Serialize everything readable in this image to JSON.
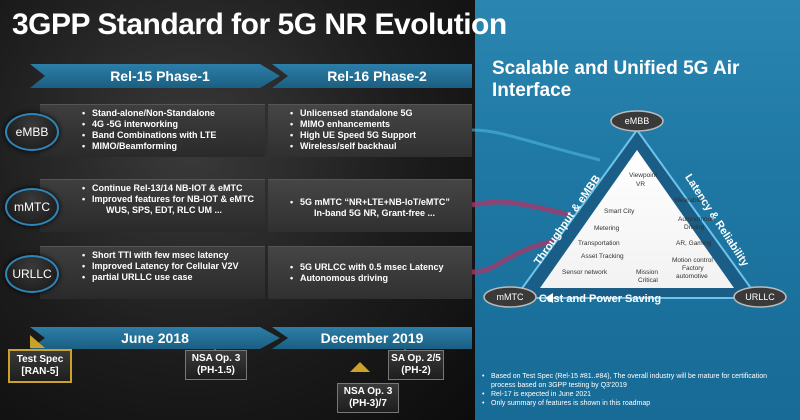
{
  "title": "3GPP Standard for 5G NR Evolution",
  "phases": {
    "rel15": "Rel-15 Phase-1",
    "rel16": "Rel-16 Phase-2"
  },
  "rows": [
    {
      "label": "eMBB",
      "rel15": [
        "Stand-alone/Non-Standalone",
        "4G -5G interworking",
        "Band Combinations with LTE",
        "MIMO/Beamforming"
      ],
      "rel16": [
        "Unlicensed standalone 5G",
        "MIMO enhancements",
        "High UE Speed 5G Support",
        "Wireless/self backhaul"
      ]
    },
    {
      "label": "mMTC",
      "rel15": [
        "Continue Rel-13/14 NB-IOT & eMTC",
        "Improved features for NB-IOT & eMTC"
      ],
      "rel15_sub": "WUS, SPS, EDT, RLC UM ...",
      "rel16": [
        "5G mMTC “NR+LTE+NB-IoT/eMTC”"
      ],
      "rel16_sub": "In-band 5G NR, Grant-free ..."
    },
    {
      "label": "URLLC",
      "rel15": [
        "Short TTI with few msec latency",
        "Improved Latency for Cellular V2V",
        "partial URLLC use case"
      ],
      "rel16": [
        "5G URLCC with 0.5 msec Latency",
        "Autonomous driving"
      ]
    }
  ],
  "timeline": {
    "y2018": "June 2018",
    "y2019": "December 2019"
  },
  "milestones": {
    "test_spec": {
      "line1": "Test Spec",
      "line2": "[RAN-5]"
    },
    "nsa3": {
      "line1": "NSA Op. 3",
      "line2": "(PH-1.5)"
    },
    "sa25": {
      "line1": "SA Op. 2/5",
      "line2": "(PH-2)"
    },
    "nsa37": {
      "line1": "NSA Op. 3",
      "line2": "(PH-3)/7"
    }
  },
  "right": {
    "heading": "Scalable and Unified 5G Air Interface",
    "triangle": {
      "top": "eMBB",
      "left": "mMTC",
      "right": "URLLC",
      "left_edge": "Throughput & eMBB",
      "right_edge": "Latency & Reliability",
      "bottom_edge": "Cost and Power Saving",
      "uses": {
        "viewpoint": "Viewpoint",
        "vr": "VR",
        "wearable": "Wearable",
        "smart_city": "Smart City",
        "autonomous": "Autonomous",
        "driving": "Driving",
        "metering": "Metering",
        "ar": "AR, Gaming",
        "transportation": "Transportation",
        "asset": "Asset Tracking",
        "motion": "Motion control",
        "factory": "Factory",
        "automotive": "automotive",
        "sensor": "Sensor network",
        "mission": "Mission",
        "critical": "Critical"
      }
    },
    "notes": [
      "Based on Test Spec (Rel-15 #81..#84), The overall industry will be mature for certification process based on 3GPP testing by Q3'2019",
      "Rel-17 is expected in June 2021",
      "Only summary of features is shown in this roadmap"
    ]
  }
}
